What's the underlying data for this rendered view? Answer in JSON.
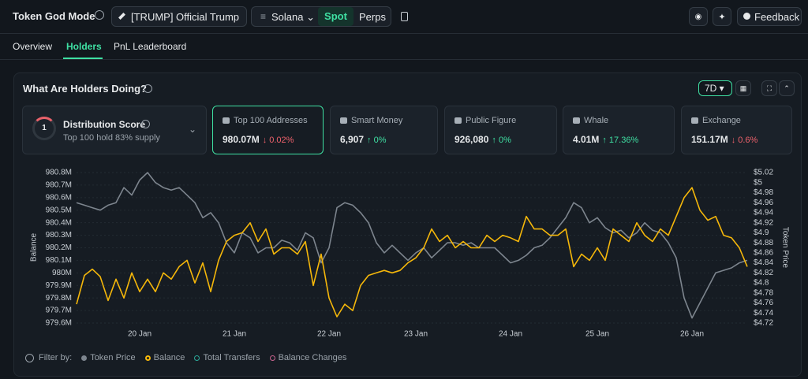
{
  "header": {
    "title": "Token God Mode",
    "token": "[TRUMP] Official Trump",
    "chain": "Solana",
    "markets": [
      "Spot",
      "Perps"
    ],
    "feedback": "Feedback"
  },
  "tabs": [
    "Overview",
    "Holders",
    "PnL Leaderboard"
  ],
  "section": {
    "title": "What Are Holders Doing?",
    "period": "7D"
  },
  "distribution": {
    "score": 1,
    "title": "Distribution Score",
    "subtitle": "Top 100 hold 83% supply"
  },
  "stats": [
    {
      "label": "Top 100 Addresses",
      "value": "980.07M",
      "change": "↓ 0.02%"
    },
    {
      "label": "Smart Money",
      "value": "6,907",
      "change": "↑ 0%"
    },
    {
      "label": "Public Figure",
      "value": "926,080",
      "change": "↑ 0%"
    },
    {
      "label": "Whale",
      "value": "4.01M",
      "change": "↑ 17.36%"
    },
    {
      "label": "Exchange",
      "value": "151.17M",
      "change": "↓ 0.6%"
    }
  ],
  "filter": {
    "label": "Filter by:",
    "extra": [
      "Total Transfers",
      "Balance Changes"
    ]
  },
  "chart_data": {
    "type": "line",
    "ylabel": "Balance",
    "y2label": "Token Price",
    "grid": true,
    "categories": [
      null,
      null,
      null,
      null,
      null,
      null,
      null,
      null,
      "20 Jan",
      null,
      null,
      null,
      null,
      null,
      null,
      null,
      null,
      null,
      null,
      null,
      "21 Jan",
      null,
      null,
      null,
      null,
      null,
      null,
      null,
      null,
      null,
      null,
      null,
      "22 Jan",
      null,
      null,
      null,
      null,
      null,
      null,
      null,
      null,
      null,
      null,
      "23 Jan",
      null,
      null,
      null,
      null,
      null,
      null,
      null,
      null,
      null,
      null,
      null,
      "24 Jan",
      null,
      null,
      null,
      null,
      null,
      null,
      null,
      null,
      null,
      null,
      "25 Jan",
      null,
      null,
      null,
      null,
      null,
      null,
      null,
      null,
      null,
      null,
      null,
      "26 Jan",
      null,
      null,
      null,
      null,
      null,
      null,
      null
    ],
    "ylim": [
      979.6,
      980.8
    ],
    "yticks": [
      {
        "value": 979.6,
        "label": "979.6M"
      },
      {
        "value": 979.7,
        "label": "979.7M"
      },
      {
        "value": 979.8,
        "label": "979.8M"
      },
      {
        "value": 979.9,
        "label": "979.9M"
      },
      {
        "value": 980,
        "label": "980M"
      },
      {
        "value": 980.1,
        "label": "980.1M"
      },
      {
        "value": 980.2,
        "label": "980.2M"
      },
      {
        "value": 980.3,
        "label": "980.3M"
      },
      {
        "value": 980.4,
        "label": "980.4M"
      },
      {
        "value": 980.5,
        "label": "980.5M"
      },
      {
        "value": 980.6,
        "label": "980.6M"
      },
      {
        "value": 980.7,
        "label": "980.7M"
      },
      {
        "value": 980.8,
        "label": "980.8M"
      }
    ],
    "y2lim": [
      4.72,
      5.02
    ],
    "y2ticks": [
      {
        "value": 4.72,
        "label": "$4.72"
      },
      {
        "value": 4.74,
        "label": "$4.74"
      },
      {
        "value": 4.76,
        "label": "$4.76"
      },
      {
        "value": 4.78,
        "label": "$4.78"
      },
      {
        "value": 4.8,
        "label": "$4.8"
      },
      {
        "value": 4.82,
        "label": "$4.82"
      },
      {
        "value": 4.84,
        "label": "$4.84"
      },
      {
        "value": 4.86,
        "label": "$4.86"
      },
      {
        "value": 4.88,
        "label": "$4.88"
      },
      {
        "value": 4.9,
        "label": "$4.9"
      },
      {
        "value": 4.92,
        "label": "$4.92"
      },
      {
        "value": 4.94,
        "label": "$4.94"
      },
      {
        "value": 4.96,
        "label": "$4.96"
      },
      {
        "value": 4.98,
        "label": "$4.98"
      },
      {
        "value": 5,
        "label": "$5"
      },
      {
        "value": 5.02,
        "label": "$5.02"
      }
    ],
    "series": [
      {
        "name": "Token Price",
        "color": "#7d858e",
        "axis": "y2",
        "values": [
          4.96,
          4.955,
          4.95,
          4.945,
          4.955,
          4.96,
          4.99,
          4.975,
          5.005,
          5.02,
          5.0,
          4.99,
          4.985,
          4.99,
          4.975,
          4.96,
          4.93,
          4.94,
          4.92,
          4.88,
          4.86,
          4.9,
          4.89,
          4.86,
          4.87,
          4.87,
          4.885,
          4.88,
          4.865,
          4.9,
          4.89,
          4.84,
          4.87,
          4.95,
          4.96,
          4.955,
          4.94,
          4.92,
          4.88,
          4.86,
          4.875,
          4.86,
          4.845,
          4.86,
          4.87,
          4.85,
          4.865,
          4.88,
          4.88,
          4.875,
          4.88,
          4.87,
          4.87,
          4.87,
          4.855,
          4.84,
          4.845,
          4.855,
          4.87,
          4.875,
          4.89,
          4.91,
          4.93,
          4.96,
          4.95,
          4.92,
          4.93,
          4.91,
          4.9,
          4.905,
          4.89,
          4.9,
          4.92,
          4.905,
          4.9,
          4.88,
          4.85,
          4.77,
          4.73,
          4.76,
          4.79,
          4.82,
          4.825,
          4.83,
          4.84,
          4.845
        ]
      },
      {
        "name": "Balance",
        "color": "#f5b70a",
        "values": [
          979.75,
          979.98,
          980.03,
          979.97,
          979.78,
          979.95,
          979.8,
          980.0,
          979.85,
          979.95,
          979.85,
          980.0,
          979.95,
          980.05,
          980.1,
          979.92,
          980.08,
          979.85,
          980.1,
          980.25,
          980.3,
          980.32,
          980.4,
          980.25,
          980.35,
          980.15,
          980.2,
          980.2,
          980.15,
          980.25,
          979.9,
          980.15,
          979.8,
          979.65,
          979.75,
          979.7,
          979.9,
          979.98,
          980.0,
          980.02,
          980.0,
          980.02,
          980.08,
          980.12,
          980.2,
          980.35,
          980.25,
          980.3,
          980.2,
          980.25,
          980.2,
          980.2,
          980.3,
          980.25,
          980.3,
          980.28,
          980.25,
          980.45,
          980.35,
          980.35,
          980.3,
          980.3,
          980.35,
          980.05,
          980.15,
          980.1,
          980.2,
          980.1,
          980.35,
          980.3,
          980.25,
          980.4,
          980.3,
          980.25,
          980.35,
          980.3,
          980.45,
          980.6,
          980.68,
          980.5,
          980.42,
          980.45,
          980.3,
          980.28,
          980.2,
          980.05
        ]
      }
    ]
  }
}
